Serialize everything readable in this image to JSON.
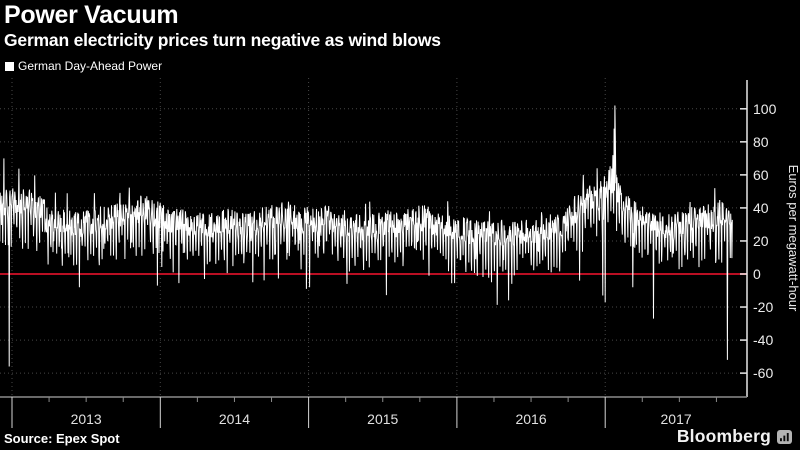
{
  "header": {
    "title": "Power Vacuum",
    "subtitle": "German electricity prices turn negative as wind blows"
  },
  "legend": {
    "label": "German Day-Ahead Power",
    "marker_color": "#ffffff"
  },
  "footer": {
    "source": "Source: Epex Spot",
    "brand": "Bloomberg"
  },
  "colors": {
    "background": "#000000",
    "line": "#ffffff",
    "zero_line": "#b90f23",
    "grid": "#474747",
    "axis": "#e8e8e8",
    "bottom_axis": "#8c8c8c",
    "tick_text": "#ececec"
  },
  "chart_data": {
    "type": "line",
    "title": "Power Vacuum",
    "subtitle": "German electricity prices turn negative as wind blows",
    "ylabel": "Euros per megawatt-hour",
    "xlabel": "",
    "legend_position": "top-left",
    "grid": "dotted",
    "y_ticks": [
      100,
      80,
      60,
      40,
      20,
      0,
      "-20",
      "-40",
      "-60"
    ],
    "y_tick_values": [
      100,
      80,
      60,
      40,
      20,
      0,
      -20,
      -40,
      -60
    ],
    "ylim": [
      -65,
      112
    ],
    "x_year_labels": [
      "2013",
      "2014",
      "2015",
      "2016",
      "2017"
    ],
    "x_range": [
      "2012-12-01",
      "2017-11-10"
    ],
    "zero_line": {
      "value": 0,
      "color": "#b90f23"
    },
    "series": [
      {
        "name": "German Day-Ahead Power",
        "color": "#ffffff",
        "unit": "Euros per megawatt-hour",
        "baseline_start_month": "2012-12",
        "monthly_means": [
          43,
          45,
          43,
          39,
          34,
          32,
          29,
          32,
          34,
          36,
          38,
          41,
          37,
          34,
          32,
          30,
          29,
          30,
          32,
          31,
          30,
          33,
          35,
          36,
          33,
          32,
          34,
          32,
          30,
          27,
          29,
          31,
          32,
          33,
          34,
          31,
          29,
          27,
          25,
          24,
          25,
          24,
          26,
          27,
          28,
          31,
          37,
          46,
          47,
          58,
          44,
          36,
          32,
          30,
          29,
          32,
          33,
          35,
          36,
          32
        ],
        "extreme_days": {
          "2012-12-12": 70,
          "2012-12-25": -56,
          "2013-06-16": -8,
          "2013-12-25": -7,
          "2014-04-20": -3,
          "2014-08-17": -5,
          "2014-12-27": -9,
          "2015-01-04": -8,
          "2015-04-06": -6,
          "2015-10-25": -1,
          "2016-03-27": -5,
          "2016-05-08": -16,
          "2016-05-16": -6,
          "2016-10-30": -4,
          "2016-11-08": 60,
          "2016-12-12": 64,
          "2016-12-26": -13,
          "2017-01-01": -17,
          "2017-01-20": 72,
          "2017-01-23": 88,
          "2017-01-25": 102,
          "2017-01-26": 80,
          "2017-01-28": 60,
          "2017-03-10": -8,
          "2017-04-30": -27,
          "2017-09-28": 52,
          "2017-10-29": -52
        },
        "noise": {
          "daily_amplitude": 8,
          "weekend_dip": 16,
          "seed": 20171030
        }
      }
    ]
  }
}
